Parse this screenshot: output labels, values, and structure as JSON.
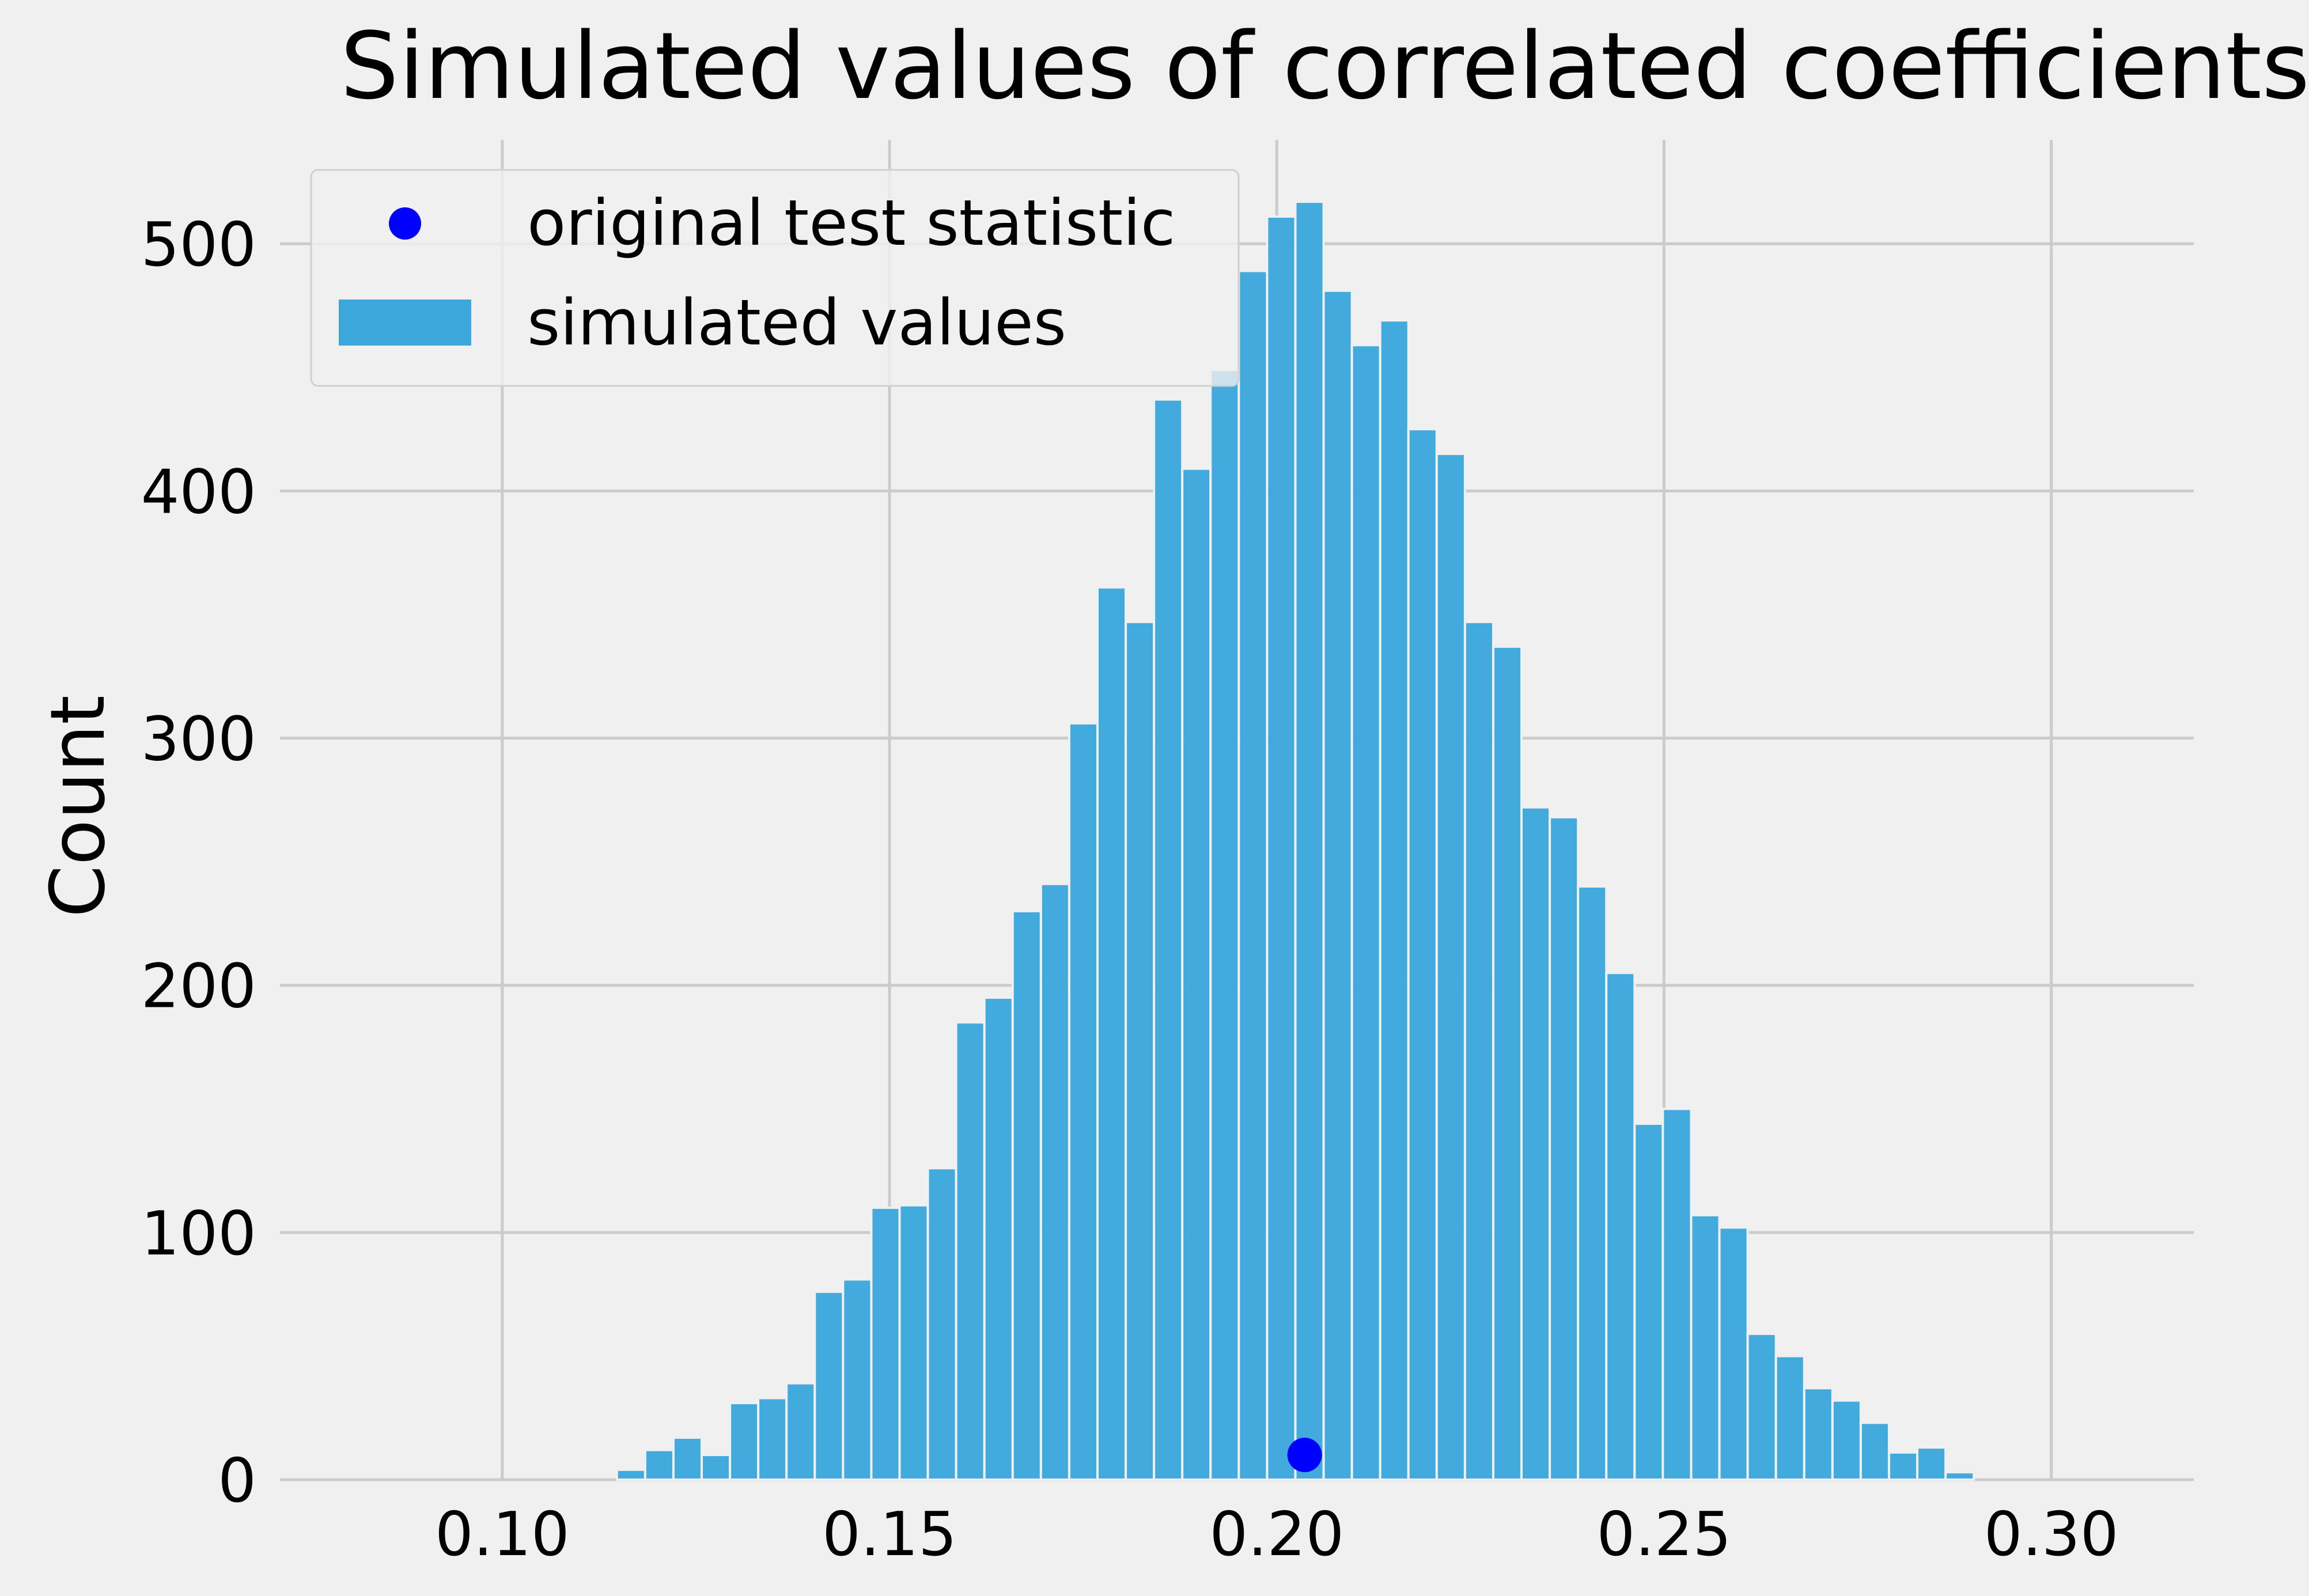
{
  "chart_data": {
    "type": "bar",
    "title": "Simulated values of correlated coefficients",
    "xlabel": "",
    "ylabel": "Count",
    "xlim": [
      0.0713,
      0.3184
    ],
    "ylim": [
      0,
      542
    ],
    "grid": true,
    "legend_position": "top-left",
    "x_ticks": [
      "0.10",
      "0.15",
      "0.20",
      "0.25",
      "0.30"
    ],
    "x_tick_values": [
      0.1,
      0.15,
      0.2,
      0.25,
      0.3
    ],
    "y_ticks": [
      "0",
      "100",
      "200",
      "300",
      "400",
      "500"
    ],
    "y_tick_values": [
      0,
      100,
      200,
      300,
      400,
      500
    ],
    "bin_start": 0.1148,
    "bin_width": 0.00365,
    "series": [
      {
        "name": "simulated values",
        "type": "histogram",
        "color": "#3ca7db",
        "values": [
          4,
          12,
          17,
          10,
          31,
          33,
          39,
          76,
          81,
          110,
          111,
          126,
          185,
          195,
          230,
          241,
          306,
          361,
          347,
          437,
          409,
          449,
          489,
          511,
          517,
          481,
          459,
          469,
          425,
          415,
          347,
          337,
          272,
          268,
          240,
          205,
          144,
          150,
          107,
          102,
          59,
          50,
          37,
          32,
          23,
          11,
          13,
          3
        ]
      },
      {
        "name": "original test statistic",
        "type": "scatter",
        "color": "#0000ff",
        "points": [
          {
            "x": 0.2036,
            "y": 10
          }
        ]
      }
    ]
  }
}
